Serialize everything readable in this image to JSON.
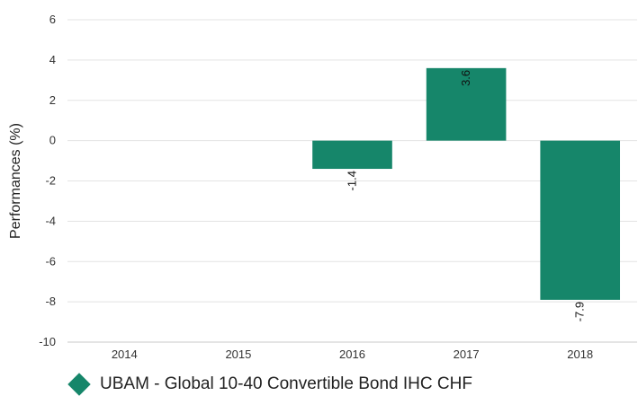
{
  "chart_data": {
    "type": "bar",
    "categories": [
      "2014",
      "2015",
      "2016",
      "2017",
      "2018"
    ],
    "series": [
      {
        "name": "UBAM - Global 10-40 Convertible Bond IHC CHF",
        "values": [
          null,
          null,
          -1.4,
          3.6,
          -7.9
        ],
        "color": "#16866a"
      }
    ],
    "ylabel": "Performances (%)",
    "xlabel": "",
    "ylim": [
      -10,
      6
    ],
    "yticks": [
      6,
      4,
      2,
      0,
      -2,
      -4,
      -6,
      -8,
      -10
    ],
    "grid": true,
    "legend": "bottom-left",
    "data_labels": [
      "",
      "",
      "-1.4",
      "3.6",
      "-7.9"
    ]
  }
}
